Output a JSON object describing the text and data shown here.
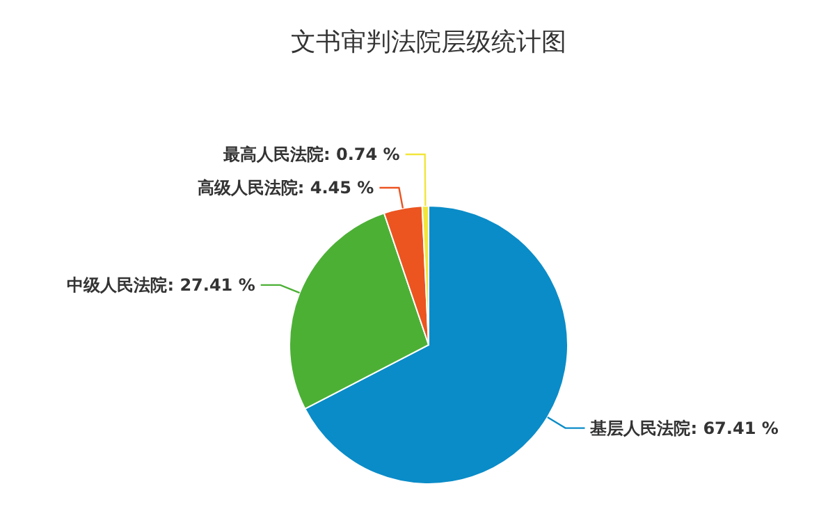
{
  "chart_data": {
    "type": "pie",
    "title": "文书审判法院层级统计图",
    "categories": [
      "基层人民法院",
      "中级人民法院",
      "高级人民法院",
      "最高人民法院"
    ],
    "values": [
      67.41,
      27.41,
      4.45,
      0.74
    ],
    "value_labels": [
      "67.41 %",
      "27.41 %",
      "4.45 %",
      "0.74 %"
    ],
    "colors": [
      "#0a8cc8",
      "#4cb035",
      "#ec5420",
      "#f2e53a"
    ]
  }
}
